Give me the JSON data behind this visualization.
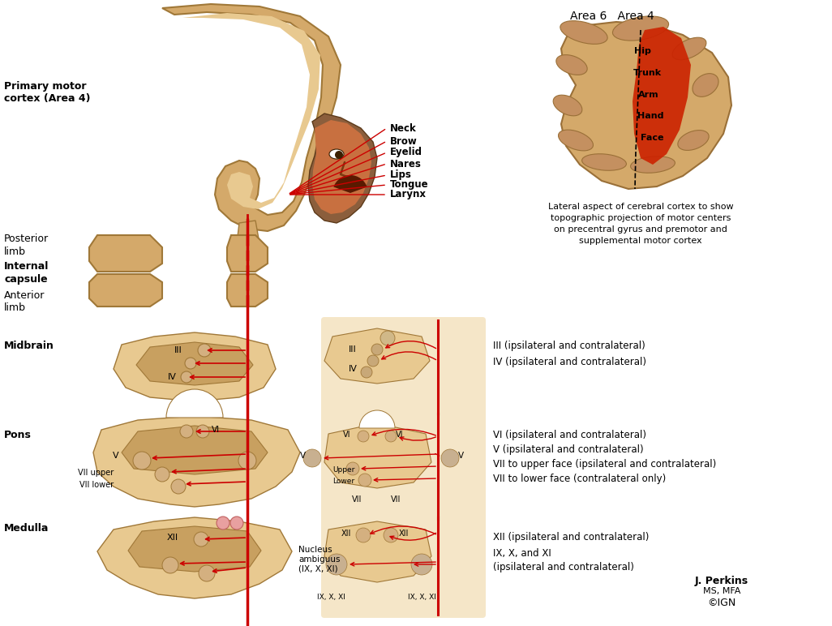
{
  "bg_color": "#ffffff",
  "tan_color": "#D4A96A",
  "tan_light": "#E8C990",
  "tan_med": "#C8A060",
  "tan_dark": "#A07838",
  "red_color": "#CC0000",
  "cream_bg": "#F5E6C8",
  "left_labels": {
    "primary_motor": "Primary motor\ncortex (Area 4)",
    "posterior_limb": "Posterior\nlimb",
    "internal_capsule": "Internal\ncapsule",
    "anterior_limb": "Anterior\nlimb",
    "midbrain": "Midbrain",
    "pons": "Pons",
    "medulla": "Medulla"
  },
  "face_labels": [
    "Neck",
    "Brow",
    "Eyelid",
    "Nares",
    "Lips",
    "Tongue",
    "Larynx"
  ],
  "brain_labels": [
    "Hip",
    "Trunk",
    "Arm",
    "Hand",
    "Face"
  ],
  "brain_title": "Area 6   Area 4",
  "brain_caption": "Lateral aspect of cerebral cortex to show\ntopographic projection of motor centers\non precentral gyrus and premotor and\nsupplemental motor cortex",
  "right_labels": [
    "III (ipsilateral and contralateral)",
    "IV (ipsilateral and contralateral)",
    "VI (ipsilateral and contralateral)",
    "V (ipsilateral and contralateral)",
    "VII to upper face (ipsilateral and contralateral)",
    "VII to lower face (contralateral only)",
    "XII (ipsilateral and contralateral)",
    "IX, X, and XI\n(ipsilateral and contralateral)"
  ],
  "nucleus_ambiguus": "Nucleus\nambiguus\n(IX, X, XI)"
}
